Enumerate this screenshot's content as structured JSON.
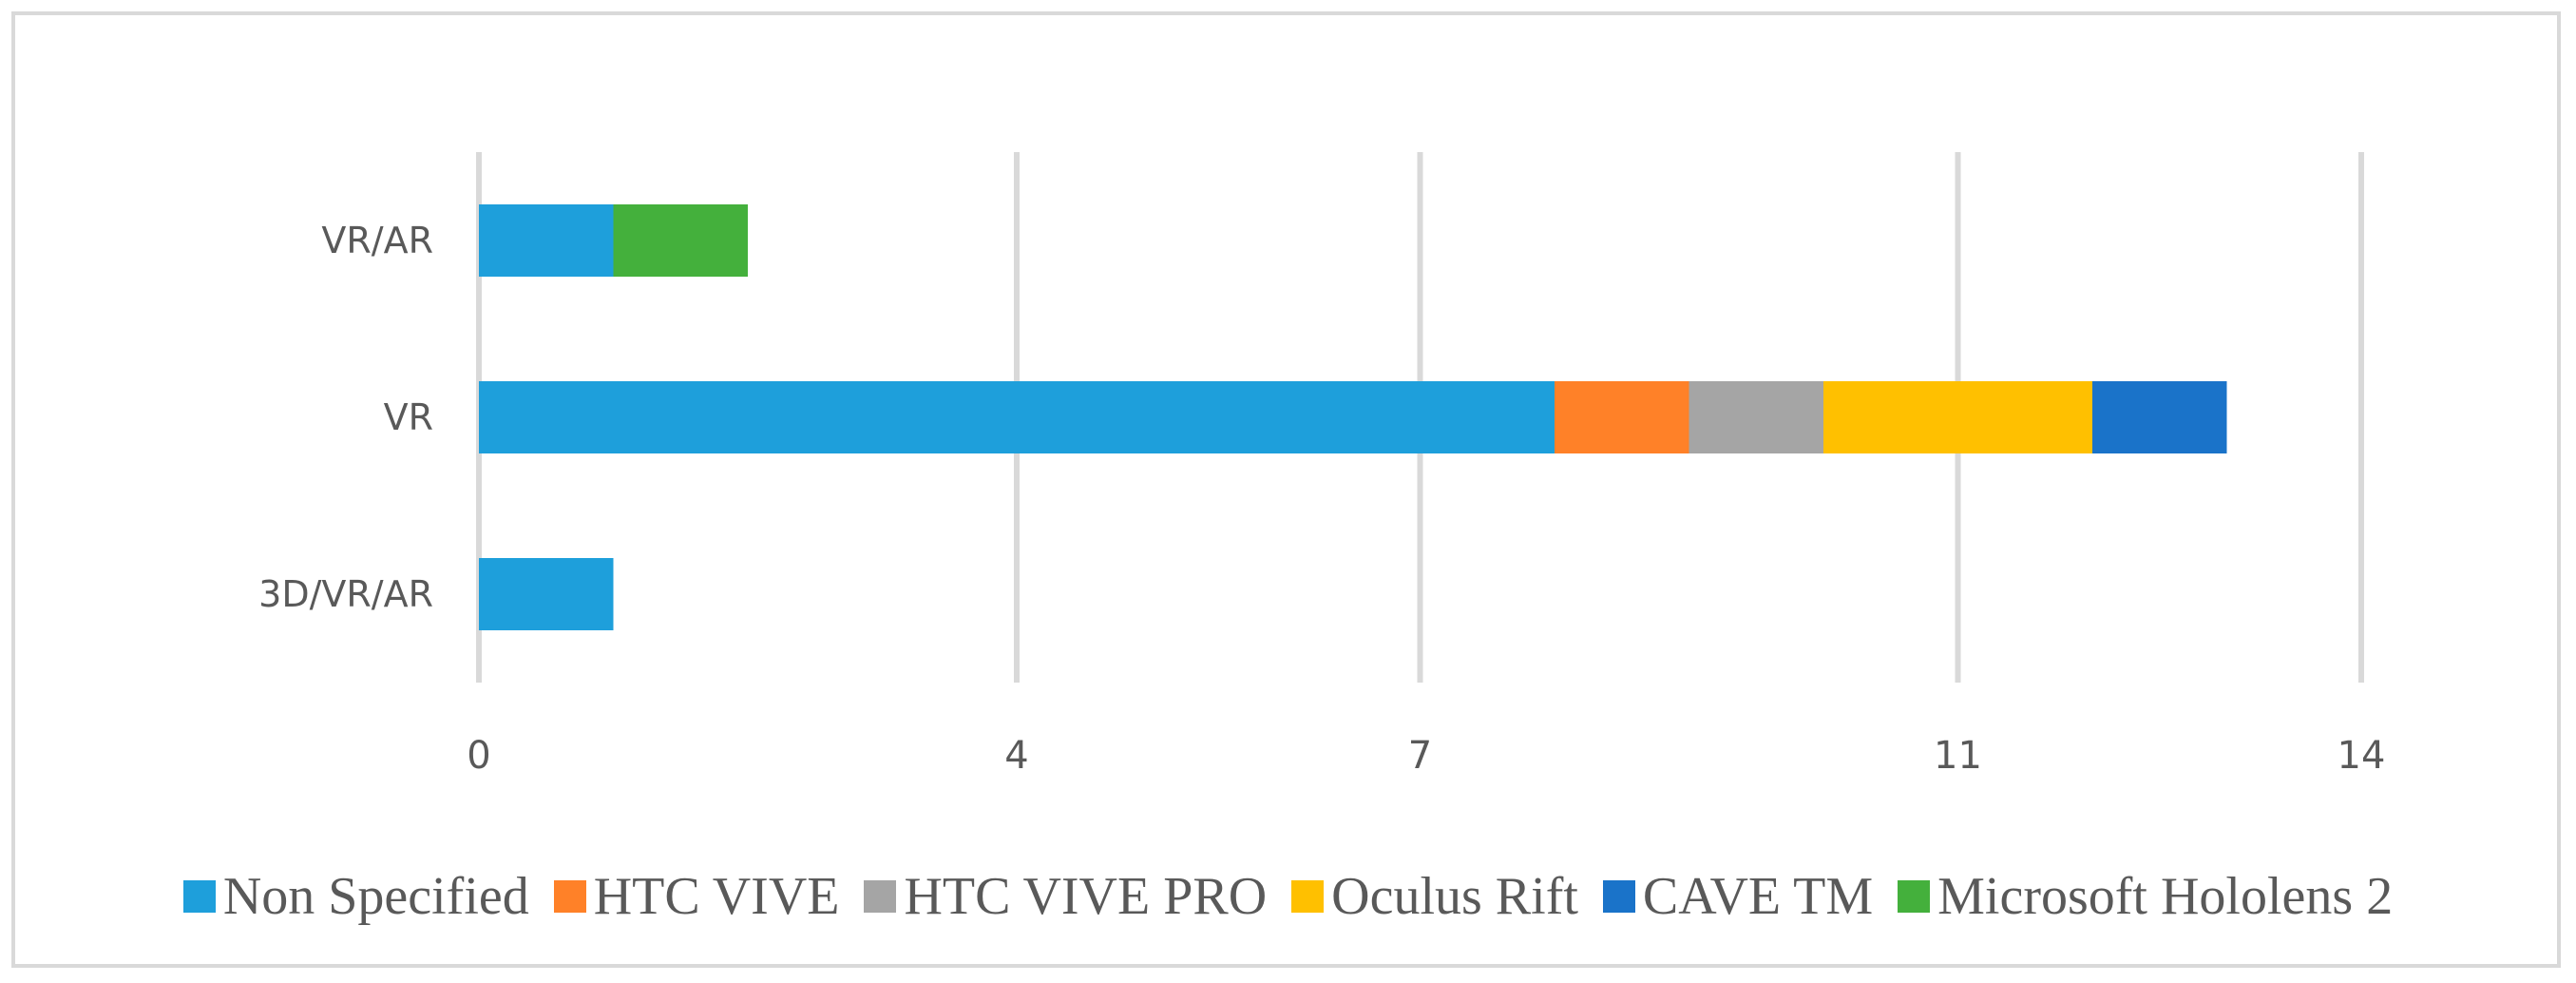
{
  "chart_data": {
    "type": "bar",
    "orientation": "horizontal",
    "stacked": true,
    "categories": [
      "VR/AR",
      "VR",
      "3D/VR/AR"
    ],
    "series": [
      {
        "name": "Non Specified",
        "color": "#1e9fdb",
        "values": [
          1,
          8,
          1
        ]
      },
      {
        "name": "HTC VIVE",
        "color": "#ff8128",
        "values": [
          0,
          1,
          0
        ]
      },
      {
        "name": "HTC VIVE PRO",
        "color": "#a5a5a5",
        "values": [
          0,
          1,
          0
        ]
      },
      {
        "name": "Oculus Rift",
        "color": "#ffc000",
        "values": [
          0,
          2,
          0
        ]
      },
      {
        "name": "CAVE TM",
        "color": "#1a73c9",
        "values": [
          0,
          1,
          0
        ]
      },
      {
        "name": "Microsoft Hololens 2",
        "color": "#44b03c",
        "values": [
          1,
          0,
          0
        ]
      }
    ],
    "xticks": [
      0,
      4,
      7,
      11,
      14
    ],
    "xtick_labels": [
      "0",
      "4",
      "7",
      "11",
      "14"
    ],
    "xlim": [
      0,
      14
    ],
    "grid": true,
    "legend_position": "bottom",
    "title": "",
    "xlabel": "",
    "ylabel": ""
  }
}
